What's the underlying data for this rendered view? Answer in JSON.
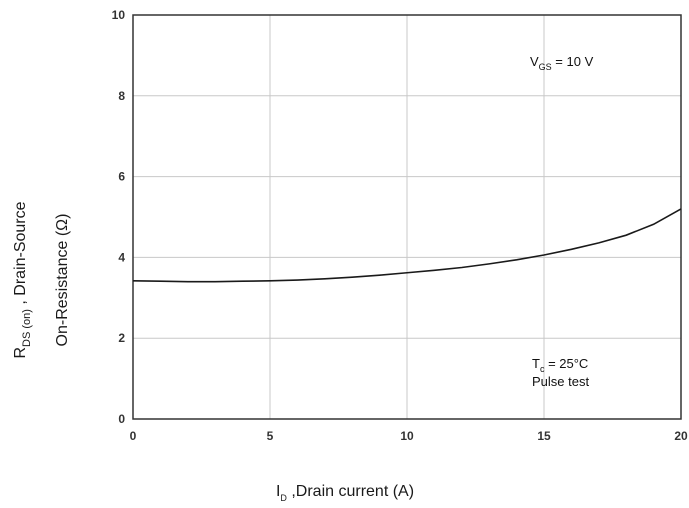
{
  "chart_data": {
    "type": "line",
    "x_tick_labels": [
      "0",
      "5",
      "10",
      "15",
      "20"
    ],
    "y_tick_labels": [
      "0",
      "2",
      "4",
      "6",
      "8",
      "10"
    ],
    "xlim": [
      0,
      20
    ],
    "ylim": [
      0,
      10
    ],
    "grid": true,
    "xlabel": {
      "main": "I",
      "sub": "D",
      "rest": " ,Drain current (A)"
    },
    "ylabel": {
      "line1_main": "R",
      "line1_sub": "DS (on)",
      "line1_rest": " , Drain-Source",
      "line2": "On-Resistance   (Ω)"
    },
    "annotations": {
      "vgs": {
        "main": "V",
        "sub": "GS",
        "rest": " = 10 V"
      },
      "tc": {
        "main": "T",
        "sub": "c",
        "rest": " = 25°C"
      },
      "pulse": "Pulse test"
    },
    "series": [
      {
        "x": [
          0,
          1,
          2,
          3,
          4,
          5,
          6,
          7,
          8,
          9,
          10,
          11,
          12,
          13,
          14,
          15,
          16,
          17,
          18,
          19,
          20
        ],
        "values": [
          3.42,
          3.41,
          3.4,
          3.4,
          3.41,
          3.42,
          3.44,
          3.47,
          3.51,
          3.56,
          3.62,
          3.68,
          3.75,
          3.84,
          3.94,
          4.06,
          4.2,
          4.36,
          4.55,
          4.82,
          5.2
        ],
        "color": "#1a1a1a"
      }
    ]
  }
}
